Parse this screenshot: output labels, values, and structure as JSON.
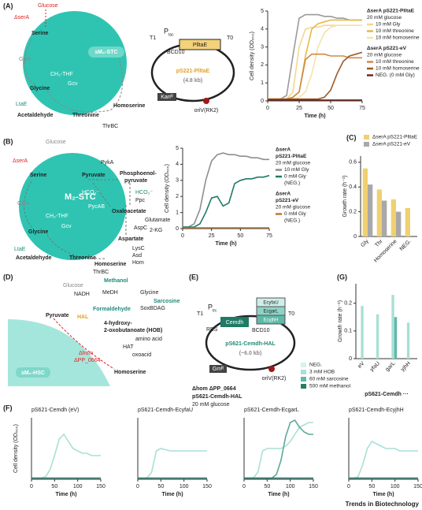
{
  "panel_a": {
    "label": "(A)",
    "glucose": "Glucose",
    "deletion": "ΔserA",
    "serine": "Serine",
    "glya": "GlyA",
    "ch2thf": "CH₂-THF",
    "gcv": "Gcv",
    "glycine": "Glycine",
    "ltae": "LtaE",
    "acetaldehyde": "Acetaldehyde",
    "threonine": "Threonine",
    "homoserine": "Homoserine",
    "thrbc": "ThrBC",
    "module": "sM₂-STC"
  },
  "plasmid_a": {
    "t1": "T1",
    "promoter": "P",
    "promoter_sub": "tac",
    "bcd": "BCD10",
    "insert": "PlltaE",
    "t0": "T0",
    "name": "pS221-PlltaE",
    "size": "(4.8 kb)",
    "marker": "Kanᴿ",
    "ori": "oriV(RK2)"
  },
  "panel_b": {
    "label": "(B)",
    "glucose": "Glucose",
    "deletion": "ΔserA",
    "serine": "Serine",
    "pyka": "PykA",
    "pyruvate": "Pyruvate",
    "pep": [
      "Phosphoenol-",
      "pyruvate"
    ],
    "hco3_in": "HCO₃⁻",
    "hco3_out": "HCO₃⁻",
    "ppc": "Ppc",
    "pycab": "PycAB",
    "oxaloacetate": "Oxaloacetate",
    "glutamate": "Glutamate",
    "aspc": "AspC",
    "kg": "2-KG",
    "aspartate": "Aspartate",
    "lysc": "LysC",
    "asd": "Asd",
    "hom": "Hom",
    "glya": "GlyA",
    "ch2thf": "CH₂-THF",
    "gcv": "Gcv",
    "glycine": "Glycine",
    "module": "M₂-STC",
    "ltae": "LtaE",
    "acetaldehyde": "Acetaldehyde",
    "threonine": "Threonine",
    "homoserine": "Homoserine",
    "thrbc": "ThrBC"
  },
  "panel_d": {
    "label": "(D)",
    "glucose": "Glucose",
    "methanol": "Methanol",
    "nadh": "NADH",
    "medh": "MeDH",
    "glycine": "Glycine",
    "sarcosine": "Sarcosine",
    "soxbdag": "SoxBDAG",
    "formaldehyde": "Formaldehyde",
    "hal": "HAL",
    "pyruvate": "Pyruvate",
    "hob": [
      "4-hydroxy-",
      "2-oxobutanoate (HOB)"
    ],
    "amino_acid": "amino acid",
    "hat": "HAT",
    "oxoacid": "oxoacid",
    "deletions": [
      "Δhom",
      "ΔPP_0664"
    ],
    "homoserine": "Homoserine",
    "module": "sM₂-HSC"
  },
  "panel_e": {
    "label": "(E)",
    "t1": "T1",
    "promoter": "P",
    "promoter_sub": "trc",
    "rbs": "RBS",
    "mdh": "Cemdh",
    "bcd": "BCD10",
    "genes": [
      "EcyfaU",
      "EcgarL",
      "EcyjhH"
    ],
    "t0": "T0",
    "name": "pS621-Cemdh-HAL",
    "size": "(~6.0 kb)",
    "marker": "Gmᴿ",
    "ori": "oriV(RK2)",
    "strain": [
      "Δhom ΔPP_0664",
      "pS621-Cemdh-HAL",
      "20 mM glucose"
    ]
  },
  "labels": {
    "c": "(C)",
    "f": "(F)",
    "g": "(G)"
  },
  "footer": "Trends in Biotechnology",
  "chart_data": [
    {
      "type": "line",
      "x": [
        0,
        5,
        10,
        15,
        20,
        25,
        30,
        35,
        40,
        45,
        50,
        55,
        60,
        65,
        70,
        75
      ],
      "xlim": [
        0,
        75
      ],
      "xticks": [
        0,
        25,
        50,
        75
      ],
      "ylim": [
        0,
        5
      ],
      "yticks": [
        0,
        1,
        2,
        3,
        4,
        5
      ],
      "xlabel": "Time (h)",
      "ylabel": "Cell density (OD₆₀₀)",
      "series": [
        {
          "color": "#9a9a9a",
          "values": [
            0.1,
            0.1,
            0.1,
            0.3,
            2.5,
            4.6,
            4.8,
            4.8,
            4.8,
            4.7,
            4.7,
            4.6,
            4.6,
            4.5,
            4.5,
            4.5
          ]
        }
      ],
      "legend_groups": [
        {
          "title": [
            "ΔserA pS221-PlltaE",
            "20 mM glucose"
          ],
          "series": [
            {
              "name": "10 mM Gly",
              "color": "#f1d88f",
              "values": [
                0.1,
                0.1,
                0.1,
                0.1,
                0.5,
                3.0,
                4.0,
                4.1,
                4.1,
                4.2,
                4.2,
                4.2,
                4.2,
                4.2,
                4.2,
                4.2
              ]
            },
            {
              "name": "10 mM threonine",
              "color": "#e6b94a",
              "values": [
                0.1,
                0.1,
                0.1,
                0.1,
                0.2,
                0.5,
                2.5,
                4.0,
                4.3,
                4.4,
                4.5,
                4.5,
                4.5,
                4.5,
                4.5,
                4.5
              ]
            },
            {
              "name": "10 mM homoserine",
              "color": "#f5e2ac",
              "values": [
                0.1,
                0.1,
                0.1,
                0.1,
                0.1,
                0.2,
                0.5,
                1.5,
                3.0,
                3.8,
                4.1,
                4.2,
                4.2,
                4.2,
                4.2,
                4.2
              ]
            }
          ]
        },
        {
          "title": [
            "ΔserA pS221-eV",
            "20 mM glucose"
          ],
          "series": [
            {
              "name": "10 mM threonine",
              "color": "#d08a45",
              "values": [
                0.1,
                0.1,
                0.1,
                0.1,
                0.2,
                0.5,
                2.3,
                2.6,
                2.6,
                2.6,
                2.5,
                2.5,
                2.5,
                2.4,
                2.4,
                2.4
              ]
            },
            {
              "name": "10 mM homoserine",
              "color": "#9b5a2a",
              "values": [
                0.1,
                0.1,
                0.1,
                0.1,
                0.1,
                0.1,
                0.1,
                0.1,
                0.1,
                0.2,
                0.6,
                1.5,
                2.2,
                2.5,
                2.6,
                2.7
              ]
            },
            {
              "name": "NEG. (0 mM Gly)",
              "color": "#6e2a1e",
              "values": [
                0.05,
                0.05,
                0.05,
                0.05,
                0.05,
                0.05,
                0.05,
                0.05,
                0.05,
                0.05,
                0.05,
                0.05,
                0.05,
                0.05,
                0.05,
                0.05
              ]
            }
          ]
        }
      ]
    },
    {
      "type": "line",
      "x": [
        0,
        5,
        10,
        15,
        20,
        25,
        30,
        35,
        40,
        45,
        50,
        55,
        60,
        65,
        70,
        75
      ],
      "xlim": [
        0,
        75
      ],
      "xticks": [
        0,
        25,
        50,
        75
      ],
      "ylim": [
        0,
        5
      ],
      "yticks": [
        0,
        1,
        2,
        3,
        4,
        5
      ],
      "xlabel": "Time (h)",
      "ylabel": "Cell density (OD₆₀₀)",
      "legend_groups": [
        {
          "title": [
            "ΔserA",
            "pS221-PlltaE",
            "20 mM glucose"
          ],
          "series": [
            {
              "name": "10 mM Gly",
              "color": "#8e8e8e",
              "values": [
                0.1,
                0.1,
                0.3,
                1.2,
                3.0,
                4.2,
                4.6,
                4.7,
                4.6,
                4.6,
                4.5,
                4.5,
                4.4,
                4.4,
                4.3,
                4.3
              ]
            },
            {
              "name": "0 mM Gly",
              "color": "#1f7a66",
              "values": [
                0.1,
                0.1,
                0.1,
                0.3,
                1.0,
                1.9,
                2.0,
                1.4,
                1.6,
                2.8,
                3.0,
                3.1,
                3.1,
                3.2,
                3.2,
                3.3
              ]
            }
          ],
          "note": "(NEG.)"
        },
        {
          "title": [
            "ΔserA",
            "pS221-eV",
            "20 mM glucose"
          ],
          "series": [
            {
              "name": "0 mM Gly",
              "color": "#c0762f",
              "values": [
                0.05,
                0.05,
                0.05,
                0.05,
                0.05,
                0.05,
                0.05,
                0.05,
                0.05,
                0.05,
                0.05,
                0.05,
                0.05,
                0.05,
                0.05,
                0.05
              ]
            }
          ],
          "note": "(NEG.)"
        }
      ]
    },
    {
      "type": "bar",
      "categories": [
        "Gly",
        "Thr",
        "Homoserine",
        "NEG."
      ],
      "ylim": [
        0,
        0.65
      ],
      "yticks": [
        0,
        0.2,
        0.4,
        0.6
      ],
      "ylabel": "Growth rate (h⁻¹)",
      "series": [
        {
          "name": "ΔserA pS221-PlltaE",
          "color": "#f0d070",
          "values": [
            0.55,
            0.38,
            0.3,
            0.23
          ]
        },
        {
          "name": "ΔserA pS221-eV",
          "color": "#a8a8a8",
          "values": [
            0.42,
            0.29,
            0.2,
            null
          ]
        }
      ]
    },
    {
      "type": "bar",
      "categories": [
        "eV",
        "yfaU",
        "garL",
        "yjhH"
      ],
      "ylim": [
        0,
        0.27
      ],
      "yticks": [
        0,
        0.1,
        0.2
      ],
      "ylabel": "Growth rate (h⁻¹)",
      "xlabel": "pS621-Cemdh ···",
      "series": [
        {
          "name": "NEG.",
          "color": "#d9f1ec",
          "values": [
            null,
            null,
            null,
            null
          ]
        },
        {
          "name": "3 mM HOB",
          "color": "#a8e0d5",
          "values": [
            0.19,
            0.16,
            0.23,
            0.13
          ]
        },
        {
          "name": "60 mM sarcosine",
          "color": "#5fb8a8",
          "values": [
            null,
            null,
            0.15,
            null
          ]
        },
        {
          "name": "500 mM methanol",
          "color": "#2a7a6a",
          "values": [
            null,
            null,
            null,
            null
          ]
        }
      ]
    },
    {
      "type": "line",
      "title": "pS621-Cemdh (eV)",
      "x": [
        0,
        10,
        20,
        30,
        40,
        50,
        60,
        70,
        80,
        90,
        100,
        110,
        120,
        130,
        140,
        150
      ],
      "xlim": [
        0,
        150
      ],
      "xticks": [
        0,
        50,
        100,
        150
      ],
      "ylim": [
        0,
        2.6
      ],
      "xlabel": "Time (h)",
      "ylabel": "Cell density (OD₆₀₀)",
      "series": [
        {
          "color": "#a8e0d5",
          "values": [
            0.05,
            0.05,
            0.05,
            0.1,
            0.4,
            1.0,
            1.7,
            1.9,
            1.6,
            1.3,
            1.2,
            1.1,
            1.1,
            1.0,
            1.0,
            1.0
          ]
        },
        {
          "color": "#2a7a6a",
          "values": [
            0.05,
            0.05,
            0.05,
            0.05,
            0.05,
            0.05,
            0.05,
            0.05,
            0.05,
            0.05,
            0.05,
            0.05,
            0.05,
            0.05,
            0.05,
            0.05
          ]
        }
      ]
    },
    {
      "type": "line",
      "title": "pS621-Cemdh-EcyfaU",
      "x": [
        0,
        10,
        20,
        30,
        40,
        50,
        60,
        70,
        80,
        90,
        100,
        110,
        120,
        130,
        140,
        150
      ],
      "xlim": [
        0,
        150
      ],
      "xticks": [
        0,
        50,
        100,
        150
      ],
      "ylim": [
        0,
        2.6
      ],
      "xlabel": "Time (h)",
      "series": [
        {
          "color": "#a8e0d5",
          "values": [
            0.05,
            0.05,
            0.05,
            0.3,
            1.2,
            1.3,
            1.25,
            1.2,
            1.2,
            1.2,
            1.2,
            1.2,
            1.2,
            1.2,
            1.2,
            1.2
          ]
        },
        {
          "color": "#2a7a6a",
          "values": [
            0.05,
            0.05,
            0.05,
            0.05,
            0.05,
            0.05,
            0.05,
            0.05,
            0.05,
            0.05,
            0.05,
            0.05,
            0.05,
            0.05,
            0.05,
            0.05
          ]
        }
      ]
    },
    {
      "type": "line",
      "title": "pS621-Cemdh-EcgarL",
      "x": [
        0,
        10,
        20,
        30,
        40,
        50,
        60,
        70,
        80,
        90,
        100,
        110,
        120,
        130,
        140,
        150
      ],
      "xlim": [
        0,
        150
      ],
      "xticks": [
        0,
        50,
        100,
        150
      ],
      "ylim": [
        0,
        2.6
      ],
      "xlabel": "Time (h)",
      "series": [
        {
          "color": "#a8e0d5",
          "values": [
            0.05,
            0.05,
            0.05,
            0.3,
            1.2,
            1.3,
            1.3,
            1.3,
            1.3,
            1.4,
            1.6,
            1.9,
            2.2,
            2.3,
            2.4,
            2.4
          ]
        },
        {
          "color": "#5fa898",
          "values": [
            0.05,
            0.05,
            0.05,
            0.05,
            0.05,
            0.05,
            0.05,
            0.2,
            0.8,
            1.8,
            2.4,
            2.5,
            2.2,
            2.0,
            1.9,
            1.9
          ]
        },
        {
          "color": "#2a7a6a",
          "values": [
            0.05,
            0.05,
            0.05,
            0.05,
            0.05,
            0.05,
            0.05,
            0.05,
            0.05,
            0.05,
            0.05,
            0.05,
            0.05,
            0.05,
            0.05,
            0.05
          ]
        }
      ]
    },
    {
      "type": "line",
      "title": "pS621-Cemdh-EcyjhH",
      "x": [
        0,
        10,
        20,
        30,
        40,
        50,
        60,
        70,
        80,
        90,
        100,
        110,
        120,
        130,
        140,
        150
      ],
      "xlim": [
        0,
        150
      ],
      "xticks": [
        0,
        50,
        100,
        150
      ],
      "ylim": [
        0,
        2.6
      ],
      "xlabel": "Time (h)",
      "series": [
        {
          "color": "#a8e0d5",
          "values": [
            0.05,
            0.05,
            0.1,
            0.6,
            1.3,
            1.6,
            1.5,
            1.4,
            1.3,
            1.3,
            1.3,
            1.2,
            1.2,
            1.2,
            1.2,
            1.2
          ]
        },
        {
          "color": "#2a7a6a",
          "values": [
            0.05,
            0.05,
            0.05,
            0.05,
            0.05,
            0.05,
            0.05,
            0.05,
            0.05,
            0.05,
            0.05,
            0.05,
            0.05,
            0.05,
            0.05,
            0.05
          ]
        }
      ]
    }
  ]
}
